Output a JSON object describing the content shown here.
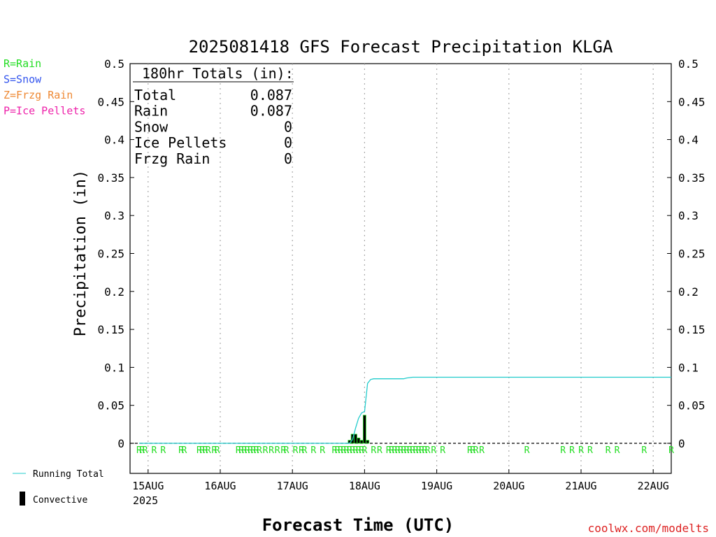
{
  "chart_data": {
    "type": "bar",
    "title": "2025081418 GFS Forecast Precipitation KLGA",
    "ylabel": "Precipitation (in)",
    "xlabel": "Forecast Time (UTC)",
    "ylim": [
      0,
      0.5
    ],
    "yticks": [
      "0",
      "0.05",
      "0.1",
      "0.15",
      "0.2",
      "0.25",
      "0.3",
      "0.35",
      "0.4",
      "0.45",
      "0.5"
    ],
    "y_tick_values": [
      0,
      0.05,
      0.1,
      0.15,
      0.2,
      0.25,
      0.3,
      0.35,
      0.4,
      0.45,
      0.5
    ],
    "x_range_days": [
      "2025-08-14T18:00",
      "2025-08-22T06:00"
    ],
    "xticks": [
      {
        "label": "15AUG",
        "day": 15
      },
      {
        "label": "16AUG",
        "day": 16
      },
      {
        "label": "17AUG",
        "day": 17
      },
      {
        "label": "18AUG",
        "day": 18
      },
      {
        "label": "19AUG",
        "day": 19
      },
      {
        "label": "20AUG",
        "day": 20
      },
      {
        "label": "21AUG",
        "day": 21
      },
      {
        "label": "22AUG",
        "day": 22
      }
    ],
    "year_label": "2025",
    "grid": true,
    "legend_position": "bottom-left",
    "legend": {
      "running_total": "Running Total",
      "convective": "Convective"
    },
    "precip_type_key": [
      {
        "text": "R=Rain",
        "color": "#22dd22"
      },
      {
        "text": "S=Snow",
        "color": "#3355ee"
      },
      {
        "text": "Z=Frzg Rain",
        "color": "#ee8833"
      },
      {
        "text": "P=Ice Pellets",
        "color": "#ee22aa"
      }
    ],
    "totals_box": {
      "header": "180hr Totals (in):",
      "rows": [
        {
          "label": "Total",
          "value": "0.087"
        },
        {
          "label": "Rain",
          "value": "0.087"
        },
        {
          "label": "Snow",
          "value": "0"
        },
        {
          "label": "Ice Pellets",
          "value": "0"
        },
        {
          "label": "Frzg Rain",
          "value": "0"
        }
      ]
    },
    "running_total": {
      "color": "#22cccc",
      "points": [
        [
          "2025-08-14T21:00",
          0.0
        ],
        [
          "2025-08-17T19:00",
          0.0
        ],
        [
          "2025-08-17T20:00",
          0.005
        ],
        [
          "2025-08-17T21:00",
          0.02
        ],
        [
          "2025-08-17T22:00",
          0.033
        ],
        [
          "2025-08-17T23:00",
          0.04
        ],
        [
          "2025-08-18T00:00",
          0.042
        ],
        [
          "2025-08-18T01:00",
          0.079
        ],
        [
          "2025-08-18T02:00",
          0.084
        ],
        [
          "2025-08-18T03:00",
          0.085
        ],
        [
          "2025-08-18T13:00",
          0.085
        ],
        [
          "2025-08-18T14:00",
          0.086
        ],
        [
          "2025-08-18T16:00",
          0.087
        ],
        [
          "2025-08-22T06:00",
          0.087
        ]
      ]
    },
    "convective_bars": [
      {
        "time": "2025-08-17T19:00",
        "value": 0.004
      },
      {
        "time": "2025-08-17T20:00",
        "value": 0.012
      },
      {
        "time": "2025-08-17T21:00",
        "value": 0.012
      },
      {
        "time": "2025-08-17T22:00",
        "value": 0.007
      },
      {
        "time": "2025-08-17T23:00",
        "value": 0.004
      },
      {
        "time": "2025-08-18T00:00",
        "value": 0.037
      },
      {
        "time": "2025-08-18T01:00",
        "value": 0.004
      }
    ],
    "rain_marker_times": [
      "2025-08-14T21:00",
      "2025-08-14T22:00",
      "2025-08-14T23:00",
      "2025-08-15T02:00",
      "2025-08-15T05:00",
      "2025-08-15T11:00",
      "2025-08-15T12:00",
      "2025-08-15T17:00",
      "2025-08-15T18:00",
      "2025-08-15T19:00",
      "2025-08-15T20:00",
      "2025-08-15T22:00",
      "2025-08-15T23:00",
      "2025-08-16T06:00",
      "2025-08-16T07:00",
      "2025-08-16T08:00",
      "2025-08-16T09:00",
      "2025-08-16T10:00",
      "2025-08-16T11:00",
      "2025-08-16T12:00",
      "2025-08-16T13:00",
      "2025-08-16T15:00",
      "2025-08-16T17:00",
      "2025-08-16T19:00",
      "2025-08-16T21:00",
      "2025-08-16T22:00",
      "2025-08-17T01:00",
      "2025-08-17T03:00",
      "2025-08-17T04:00",
      "2025-08-17T07:00",
      "2025-08-17T10:00",
      "2025-08-17T14:00",
      "2025-08-17T15:00",
      "2025-08-17T16:00",
      "2025-08-17T17:00",
      "2025-08-17T18:00",
      "2025-08-17T19:00",
      "2025-08-17T20:00",
      "2025-08-17T21:00",
      "2025-08-17T22:00",
      "2025-08-17T23:00",
      "2025-08-18T00:00",
      "2025-08-18T03:00",
      "2025-08-18T05:00",
      "2025-08-18T08:00",
      "2025-08-18T09:00",
      "2025-08-18T10:00",
      "2025-08-18T11:00",
      "2025-08-18T12:00",
      "2025-08-18T13:00",
      "2025-08-18T14:00",
      "2025-08-18T15:00",
      "2025-08-18T16:00",
      "2025-08-18T17:00",
      "2025-08-18T18:00",
      "2025-08-18T19:00",
      "2025-08-18T20:00",
      "2025-08-18T21:00",
      "2025-08-18T23:00",
      "2025-08-19T02:00",
      "2025-08-19T11:00",
      "2025-08-19T12:00",
      "2025-08-19T13:00",
      "2025-08-19T15:00",
      "2025-08-20T06:00",
      "2025-08-20T18:00",
      "2025-08-20T21:00",
      "2025-08-21T00:00",
      "2025-08-21T03:00",
      "2025-08-21T09:00",
      "2025-08-21T12:00",
      "2025-08-21T21:00",
      "2025-08-22T06:00"
    ],
    "rain_marker_label": "R",
    "rain_marker_color": "#22dd22",
    "zero_line_color": "#000000",
    "credit": "coolwx.com/modelts",
    "credit_color": "#dd2222"
  }
}
